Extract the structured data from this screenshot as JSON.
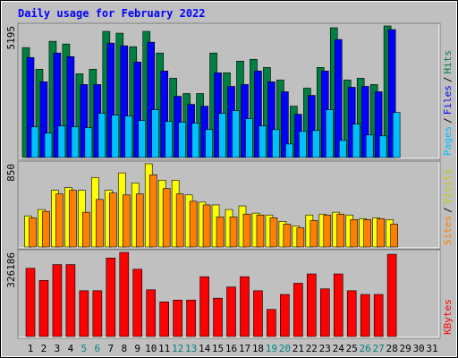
{
  "title": "Daily usage for February 2022",
  "legend_separator": "/",
  "chart_data": [
    {
      "type": "bar",
      "yticks": [
        5195
      ],
      "ylim": [
        0,
        5195
      ],
      "series": [
        {
          "name": "Hits",
          "color": "#008040",
          "values": [
            4341,
            3487,
            4590,
            4483,
            3309,
            3487,
            4981,
            4910,
            4376,
            4981,
            4127,
            3131,
            2526,
            2526,
            4127,
            3345,
            3807,
            3878,
            3558,
            3060,
            2028,
            2740,
            3558,
            5124,
            3060,
            3131,
            2882,
            5195,
            null,
            null,
            null
          ]
        },
        {
          "name": "Files",
          "color": "#0000ff",
          "values": [
            3949,
            2989,
            4127,
            3985,
            2882,
            2882,
            4519,
            4412,
            3771,
            4554,
            3416,
            2419,
            2099,
            2028,
            3345,
            2811,
            2882,
            3416,
            2989,
            2597,
            1708,
            2455,
            3416,
            4661,
            2775,
            2811,
            2597,
            5052,
            null,
            null,
            null
          ]
        },
        {
          "name": "Pages",
          "color": "#00c0ff",
          "values": [
            1210,
            961,
            1245,
            1210,
            1174,
            1743,
            1672,
            1637,
            1459,
            1886,
            1423,
            1388,
            1352,
            1103,
            1743,
            1850,
            1530,
            1245,
            1103,
            534,
            1032,
            1067,
            1886,
            676,
            1316,
            890,
            854,
            1779,
            null,
            null,
            null
          ]
        }
      ]
    },
    {
      "type": "bar",
      "yticks": [
        850
      ],
      "ylim": [
        0,
        850
      ],
      "series": [
        {
          "name": "Visits",
          "color": "#ffff00",
          "values": [
            318,
            383,
            579,
            607,
            579,
            710,
            579,
            757,
            654,
            850,
            682,
            682,
            532,
            458,
            430,
            383,
            420,
            346,
            327,
            262,
            215,
            327,
            336,
            355,
            327,
            290,
            299,
            280,
            null,
            null,
            null
          ]
        },
        {
          "name": "Sites",
          "color": "#ff8000",
          "values": [
            299,
            364,
            542,
            579,
            355,
            486,
            551,
            532,
            542,
            738,
            598,
            542,
            467,
            430,
            308,
            308,
            336,
            327,
            299,
            234,
            196,
            271,
            327,
            336,
            280,
            280,
            290,
            234,
            null,
            null,
            null
          ]
        }
      ]
    },
    {
      "type": "bar",
      "yticks": [
        326186
      ],
      "ylim": [
        0,
        326186
      ],
      "categories": [
        "1",
        "2",
        "3",
        "4",
        "5",
        "6",
        "7",
        "8",
        "9",
        "10",
        "11",
        "12",
        "13",
        "14",
        "15",
        "16",
        "17",
        "18",
        "19",
        "20",
        "21",
        "22",
        "23",
        "24",
        "25",
        "26",
        "27",
        "28",
        "29",
        "30",
        "31"
      ],
      "category_colors": [
        "#000000",
        "#000000",
        "#000000",
        "#000000",
        "#008080",
        "#008080",
        "#000000",
        "#000000",
        "#000000",
        "#000000",
        "#000000",
        "#008080",
        "#008080",
        "#000000",
        "#000000",
        "#000000",
        "#000000",
        "#000000",
        "#008080",
        "#008080",
        "#000000",
        "#000000",
        "#000000",
        "#000000",
        "#000000",
        "#008080",
        "#008080",
        "#000000",
        "#000000",
        "#000000",
        "#000000"
      ],
      "series": [
        {
          "name": "KBytes",
          "color": "#ff0000",
          "values": [
            264552,
            217440,
            279048,
            279048,
            177576,
            177576,
            304416,
            326186,
            260928,
            181200,
            134088,
            141336,
            141336,
            231936,
            148584,
            192072,
            231936,
            177576,
            105096,
            163080,
            206568,
            242808,
            184824,
            242808,
            177576,
            163080,
            163080,
            318912,
            null,
            null,
            null
          ]
        }
      ]
    }
  ]
}
